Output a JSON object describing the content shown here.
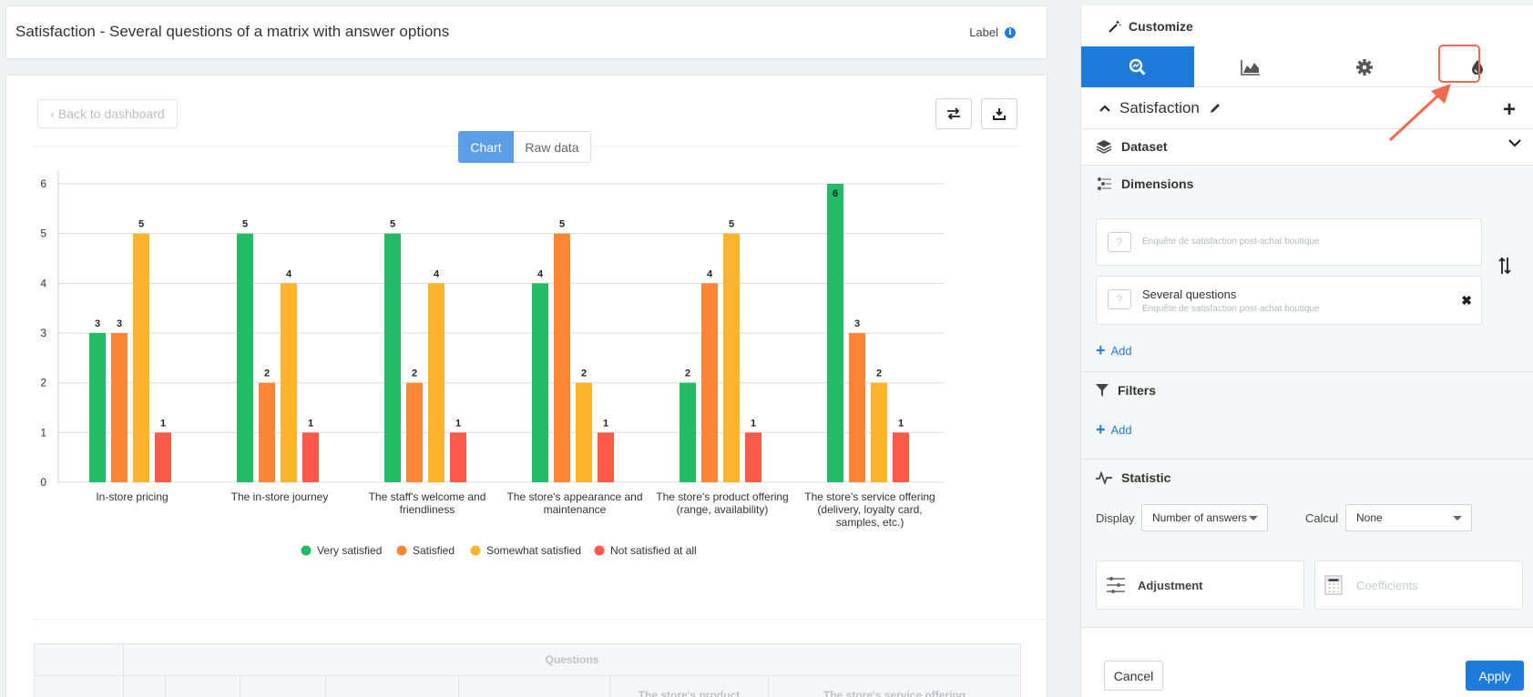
{
  "header": {
    "title": "Satisfaction - Several questions of a matrix with answer options",
    "label": "Label",
    "info_icon": "i"
  },
  "toolbar": {
    "back_label": "‹ Back to dashboard",
    "swap_icon": "swap-arrows-icon",
    "download_icon": "download-icon"
  },
  "view_tabs": {
    "chart": "Chart",
    "raw": "Raw data",
    "active": "chart"
  },
  "chart_data": {
    "type": "bar",
    "title": "",
    "xlabel": "",
    "ylabel": "",
    "ylim": [
      0,
      6
    ],
    "yticks": [
      "0",
      "1",
      "2",
      "3",
      "4",
      "5",
      "6"
    ],
    "grid": true,
    "legend_position": "bottom",
    "categories": [
      "In-store pricing",
      "The in-store journey",
      "The staff's welcome and friendliness",
      "The store's appearance and maintenance",
      "The store's product offering (range, availability)",
      "The store's service offering (delivery, loyalty card, samples, etc.)"
    ],
    "category_lines": [
      [
        "In-store pricing"
      ],
      [
        "The in-store journey"
      ],
      [
        "The staff's welcome and",
        "friendliness"
      ],
      [
        "The store's appearance and",
        "maintenance"
      ],
      [
        "The store's product offering",
        "(range, availability)"
      ],
      [
        "The store's service offering",
        "(delivery, loyalty card,",
        "samples, etc.)"
      ]
    ],
    "series": [
      {
        "name": "Very satisfied",
        "color": "#22bb66",
        "values": [
          3,
          5,
          5,
          4,
          2,
          6
        ]
      },
      {
        "name": "Satisfied",
        "color": "#fd8536",
        "values": [
          3,
          2,
          2,
          5,
          4,
          3
        ]
      },
      {
        "name": "Somewhat satisfied",
        "color": "#fdb32b",
        "values": [
          5,
          4,
          4,
          2,
          5,
          2
        ]
      },
      {
        "name": "Not satisfied at all",
        "color": "#fe5a4a",
        "values": [
          1,
          1,
          1,
          1,
          1,
          1
        ]
      }
    ]
  },
  "raw_table": {
    "group_header": "Questions",
    "columns": [
      "The store's product",
      "The store's service offering"
    ]
  },
  "panel": {
    "customize_label": "Customize",
    "tabs": [
      "analysis-icon",
      "area-chart-icon",
      "gear-icon",
      "drop-icon"
    ],
    "active_tab": 0,
    "section_title": "Satisfaction",
    "dataset_label": "Dataset",
    "dimensions_label": "Dimensions",
    "dim1_sub": "Enquête de satisfaction post-achat boutique",
    "dim2_main": "Several questions",
    "dim2_sub": "Enquête de satisfaction post-achat boutique",
    "remove_glyph": "✖",
    "add_label": "Add",
    "filters_label": "Filters",
    "filters_add_label": "Add",
    "statistic_label": "Statistic",
    "display_label": "Display",
    "display_value": "Number of answers",
    "calcul_label": "Calcul",
    "calcul_value": "None",
    "adjustment_label": "Adjustment",
    "coefficients_label": "Coefficients",
    "cancel_label": "Cancel",
    "apply_label": "Apply",
    "highlight_color": "#ef6a4e",
    "accent_color": "#1f7bd9"
  }
}
